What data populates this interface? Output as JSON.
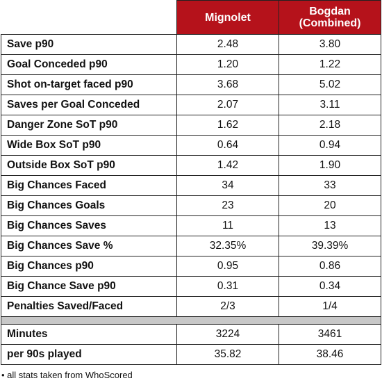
{
  "header": {
    "col1": "",
    "col2": "Mignolet",
    "col3_line1": "Bogdan",
    "col3_line2": "(Combined)"
  },
  "colors": {
    "header_bg": "#b5121b",
    "header_text": "#ffffff",
    "separator": "#c8c8c8"
  },
  "rows": [
    {
      "label": "Save p90",
      "mignolet": "2.48",
      "bogdan": "3.80"
    },
    {
      "label": "Goal Conceded p90",
      "mignolet": "1.20",
      "bogdan": "1.22"
    },
    {
      "label": "Shot on-target faced p90",
      "mignolet": "3.68",
      "bogdan": "5.02"
    },
    {
      "label": "Saves per Goal Conceded",
      "mignolet": "2.07",
      "bogdan": "3.11"
    },
    {
      "label": "Danger Zone SoT p90",
      "mignolet": "1.62",
      "bogdan": "2.18"
    },
    {
      "label": "Wide Box SoT p90",
      "mignolet": "0.64",
      "bogdan": "0.94"
    },
    {
      "label": "Outside Box SoT p90",
      "mignolet": "1.42",
      "bogdan": "1.90"
    },
    {
      "label": "Big Chances Faced",
      "mignolet": "34",
      "bogdan": "33"
    },
    {
      "label": "Big Chances Goals",
      "mignolet": "23",
      "bogdan": "20"
    },
    {
      "label": "Big Chances Saves",
      "mignolet": "11",
      "bogdan": "13"
    },
    {
      "label": "Big Chances Save %",
      "mignolet": "32.35%",
      "bogdan": "39.39%"
    },
    {
      "label": "Big Chances p90",
      "mignolet": "0.95",
      "bogdan": "0.86"
    },
    {
      "label": "Big Chance Save p90",
      "mignolet": "0.31",
      "bogdan": "0.34"
    },
    {
      "label": "Penalties Saved/Faced",
      "mignolet": "2/3",
      "bogdan": "1/4"
    }
  ],
  "footer_rows": [
    {
      "label": "Minutes",
      "mignolet": "3224",
      "bogdan": "3461"
    },
    {
      "label": "per 90s played",
      "mignolet": "35.82",
      "bogdan": "38.46"
    }
  ],
  "note": "• all stats taken from WhoScored"
}
